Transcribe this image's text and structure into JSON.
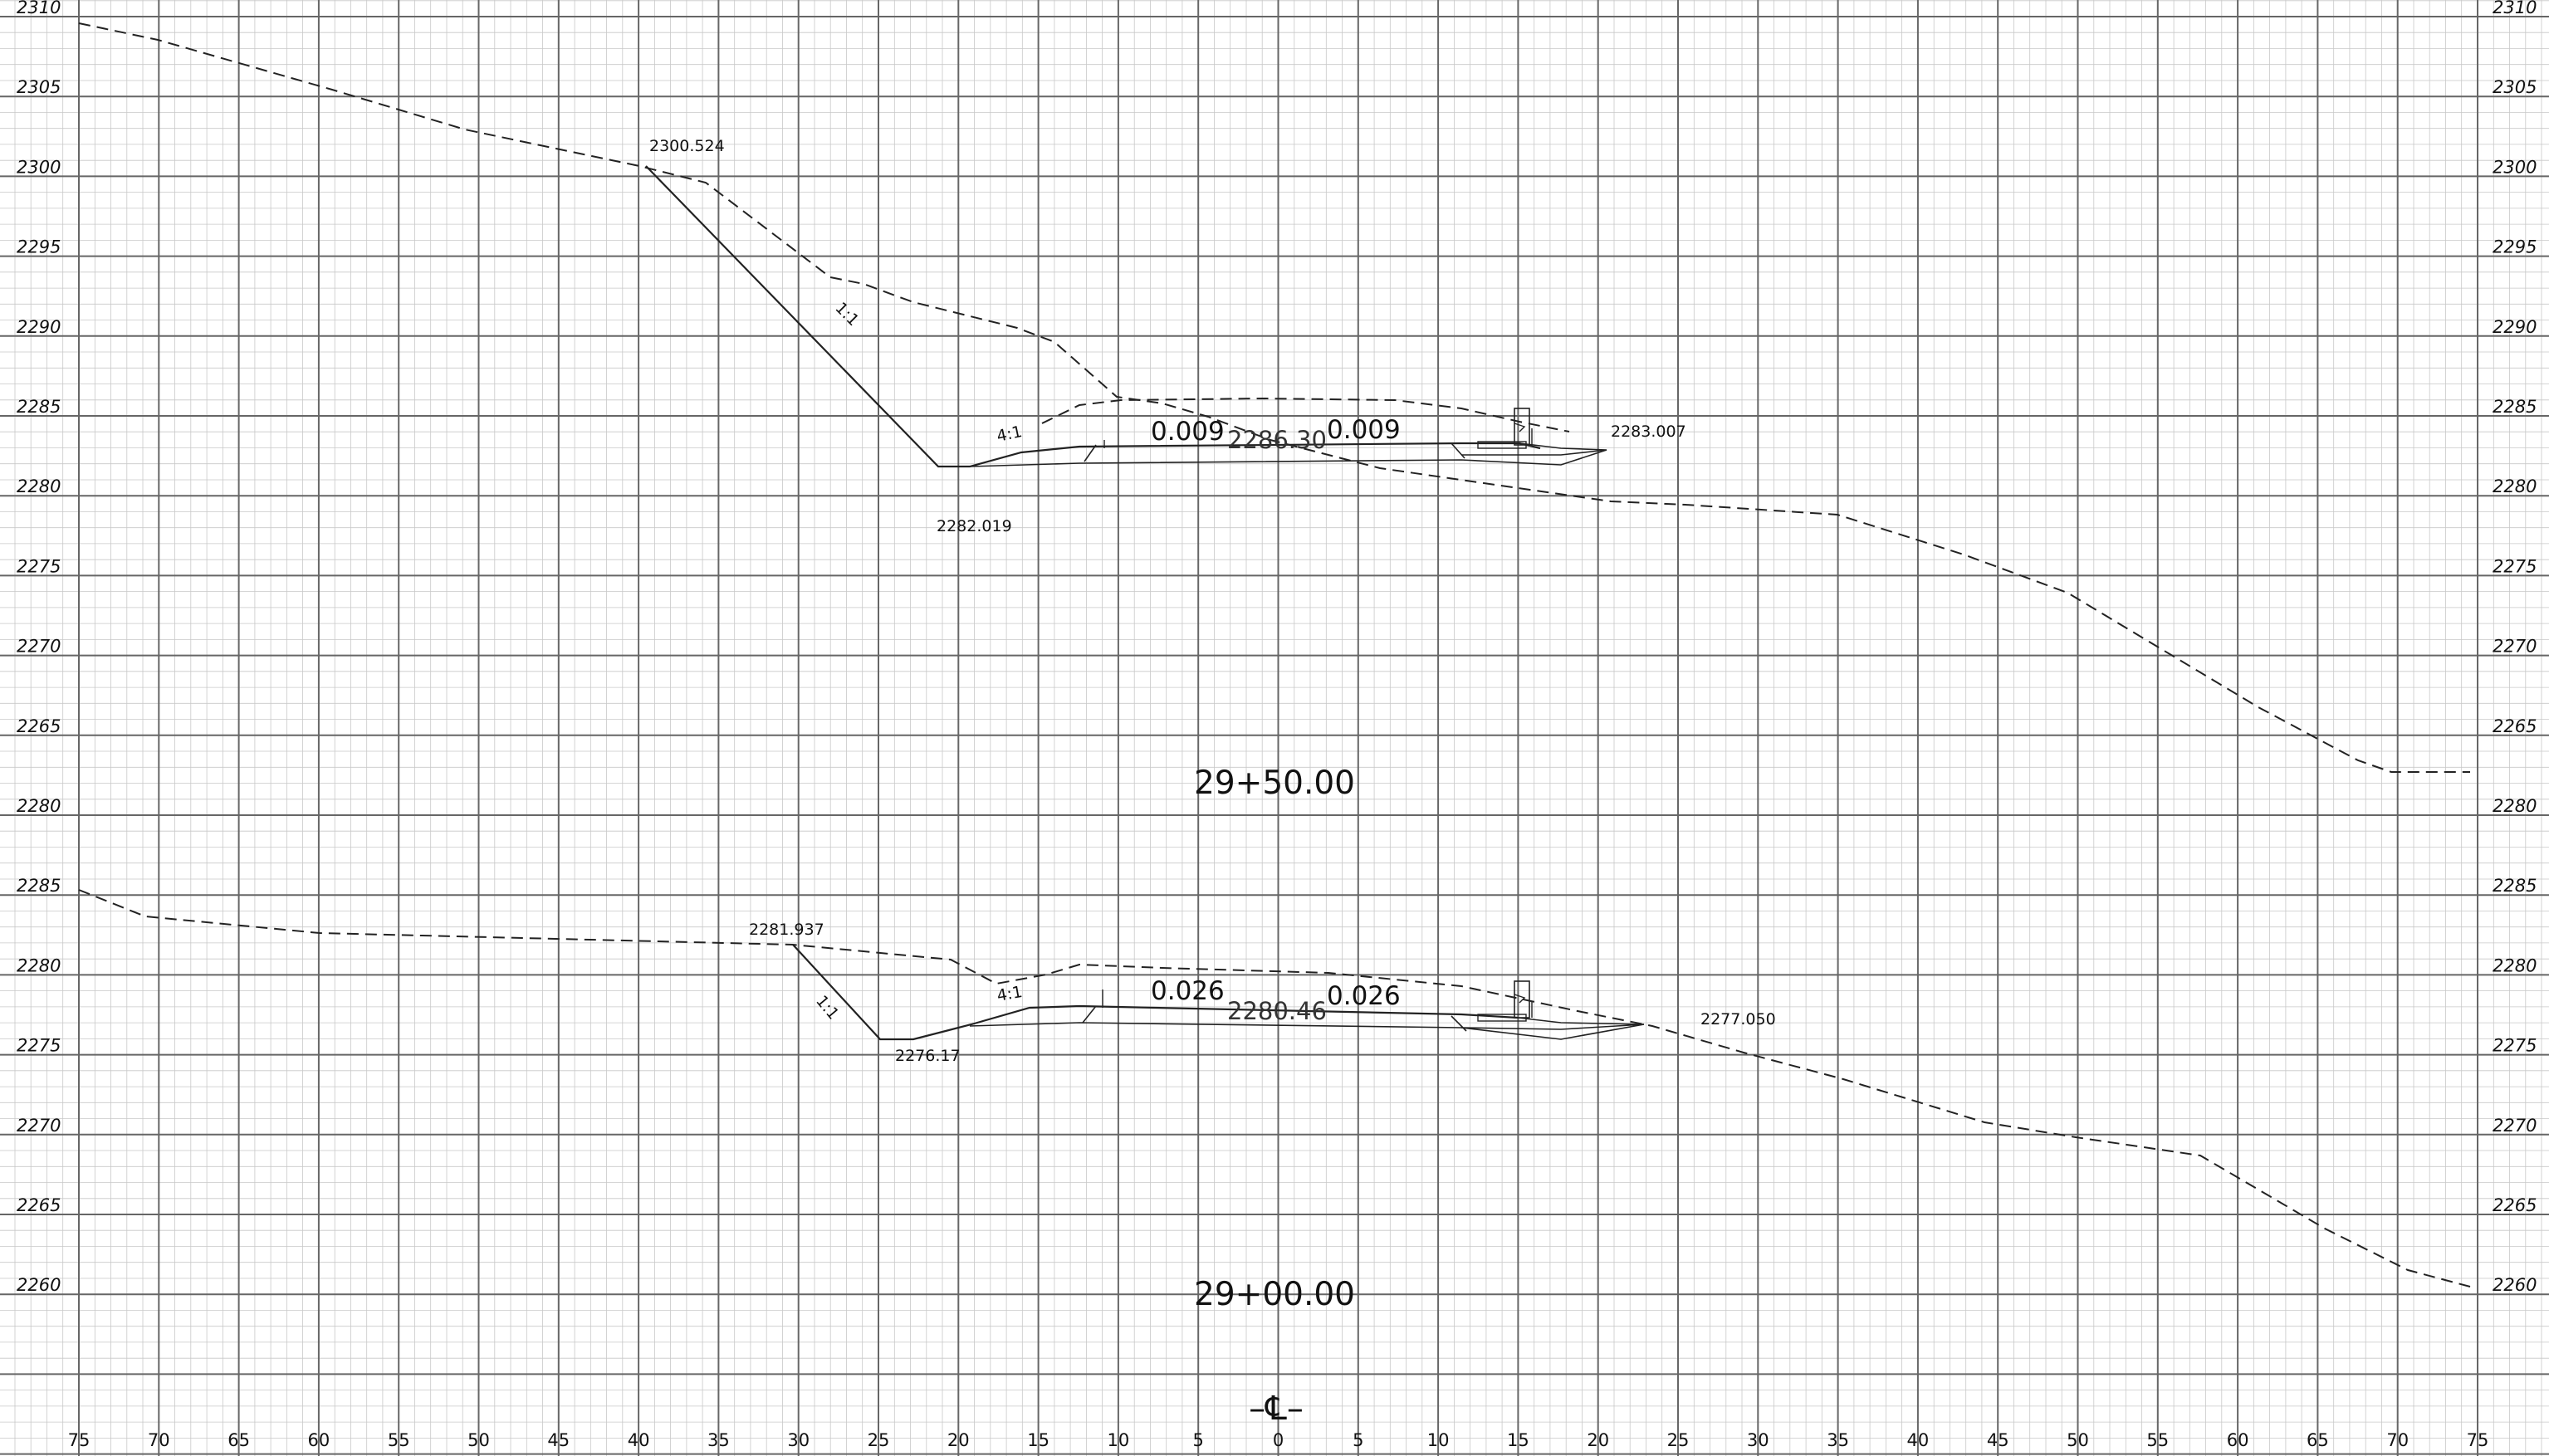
{
  "drawing": {
    "stations": [
      "29+50.00",
      "29+00.00"
    ],
    "centerline_symbol": "–℄–",
    "left_elevation_labels": [
      "2310",
      "2305",
      "2300",
      "2295",
      "2290",
      "2285",
      "2280",
      "2275",
      "2270",
      "2265",
      "2280",
      "2285",
      "2280",
      "2275",
      "2270",
      "2265",
      "2260"
    ],
    "right_elevation_labels": [
      "2310",
      "2305",
      "2300",
      "2295",
      "2290",
      "2285",
      "2280",
      "2275",
      "2270",
      "2265",
      "2280",
      "2285",
      "2280",
      "2275",
      "2270",
      "2265",
      "2260"
    ],
    "offset_labels": [
      "75",
      "70",
      "65",
      "60",
      "55",
      "50",
      "45",
      "40",
      "35",
      "30",
      "25",
      "20",
      "15",
      "10",
      "5",
      "0",
      "5",
      "10",
      "15",
      "20",
      "25",
      "30",
      "35",
      "40",
      "45",
      "50",
      "55",
      "60",
      "65",
      "70",
      "75"
    ]
  },
  "section_upper": {
    "station": "29+50.00",
    "left_catch_elevation": "2300.524",
    "ditch_elevation": "2282.019",
    "right_catch_elevation": "2283.007",
    "centerline_elevation": "2286.30",
    "left_cross_slope": "0.009",
    "right_cross_slope": "0.009",
    "cut_slope": "1:1",
    "fill_slope": "4:1"
  },
  "section_lower": {
    "station": "29+00.00",
    "left_catch_elevation": "2281.937",
    "ditch_elevation": "2276.17",
    "right_catch_elevation": "2277.050",
    "centerline_elevation": "2280.46",
    "left_cross_slope": "0.026",
    "right_cross_slope": "0.026",
    "cut_slope": "1:1",
    "fill_slope": "4:1"
  },
  "colors": {
    "background": "#ffffff",
    "minor_grid": "#c8c8c8",
    "major_grid": "#666666",
    "linework": "#222222"
  }
}
